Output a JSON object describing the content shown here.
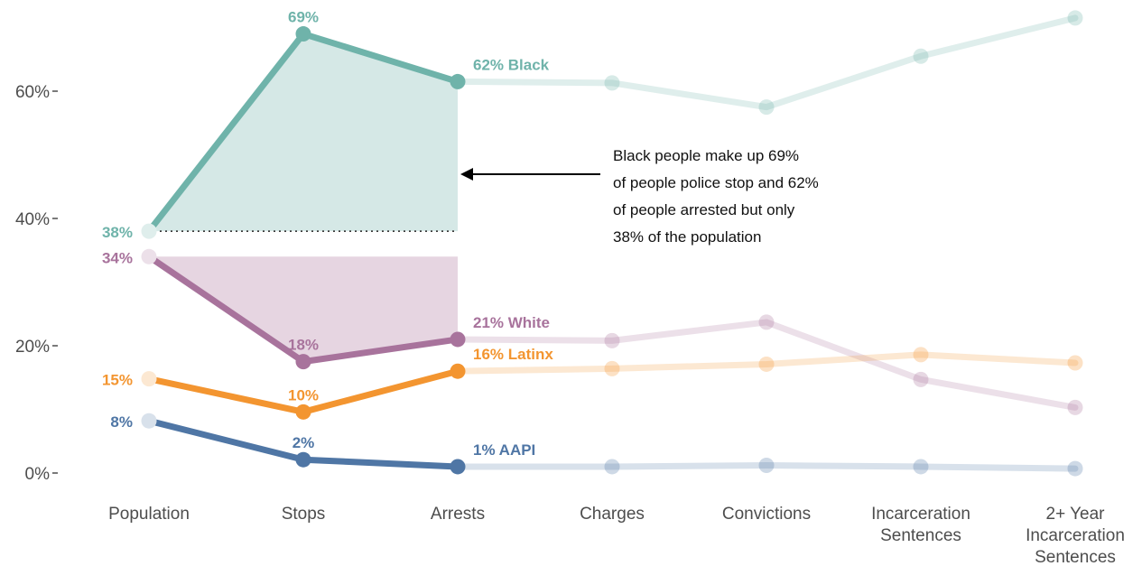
{
  "chart_data": {
    "type": "line",
    "categories": [
      "Population",
      "Stops",
      "Arrests",
      "Charges",
      "Convictions",
      "Incarceration Sentences",
      "2+ Year Incarceration Sentences"
    ],
    "category_lines": [
      [
        "Population"
      ],
      [
        "Stops"
      ],
      [
        "Arrests"
      ],
      [
        "Charges"
      ],
      [
        "Convictions"
      ],
      [
        "Incarceration",
        "Sentences"
      ],
      [
        "2+ Year",
        "Incarceration",
        "Sentences"
      ]
    ],
    "ylim": [
      0,
      72
    ],
    "y_ticks": [
      {
        "value": 0,
        "label": "0%"
      },
      {
        "value": 20,
        "label": "20%"
      },
      {
        "value": 40,
        "label": "40%"
      },
      {
        "value": 60,
        "label": "60%"
      }
    ],
    "highlighted_count": 3,
    "series": [
      {
        "key": "black",
        "color": "#6fb3aa",
        "values": [
          38,
          69,
          61.5,
          61.3,
          57.5,
          65.5,
          71.5
        ],
        "point_labels": [
          "38%",
          "69%",
          "62% Black",
          "",
          "",
          "",
          ""
        ]
      },
      {
        "key": "white",
        "color": "#a8739c",
        "values": [
          34,
          17.5,
          21,
          20.8,
          23.7,
          14.7,
          10.3
        ],
        "point_labels": [
          "34%",
          "18%",
          "21% White",
          "",
          "",
          "",
          ""
        ]
      },
      {
        "key": "latinx",
        "color": "#f39530",
        "values": [
          14.8,
          9.6,
          16,
          16.4,
          17.1,
          18.6,
          17.3
        ],
        "point_labels": [
          "15%",
          "10%",
          "16% Latinx",
          "",
          "",
          "",
          ""
        ]
      },
      {
        "key": "aapi",
        "color": "#4f76a5",
        "values": [
          8.2,
          2.1,
          1.0,
          1.0,
          1.2,
          1.0,
          0.7
        ],
        "point_labels": [
          "8%",
          "2%",
          "1% AAPI",
          "",
          "",
          "",
          ""
        ]
      }
    ],
    "annotation": {
      "lines": [
        "Black people make up 69%",
        "of people police stop and 62%",
        "of people arrested but only",
        "38% of the population"
      ]
    }
  }
}
